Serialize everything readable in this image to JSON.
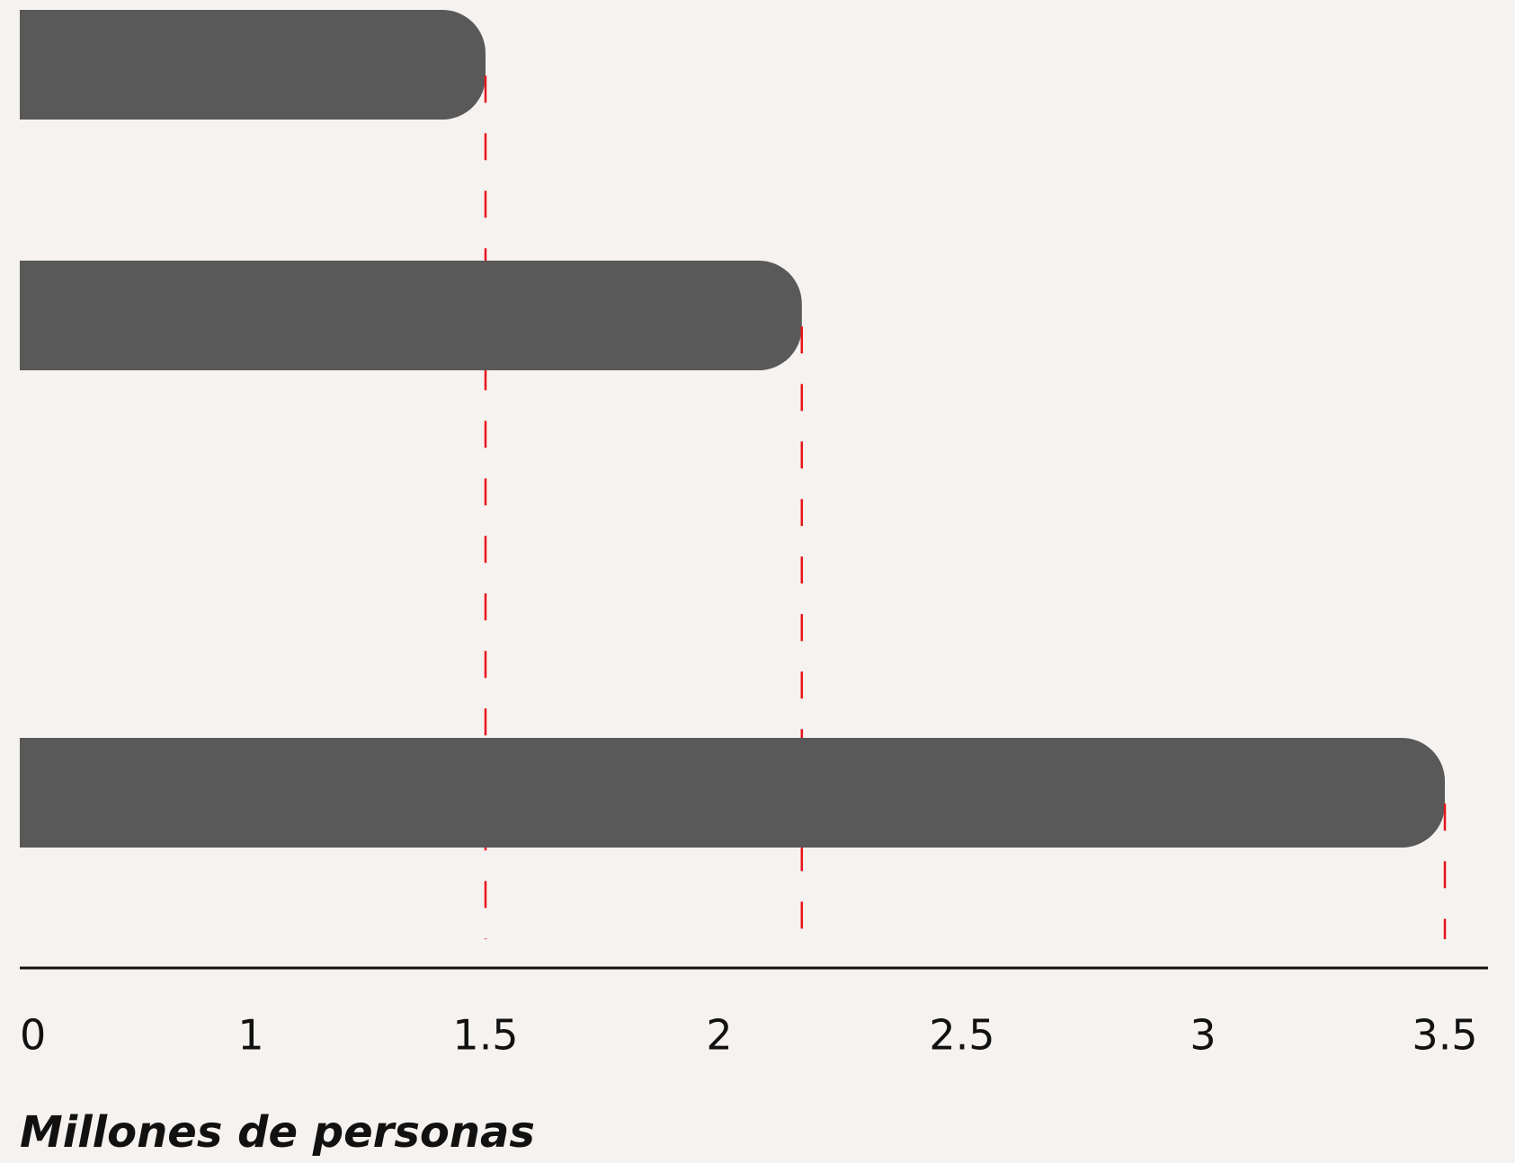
{
  "chart_data": {
    "type": "bar",
    "orientation": "horizontal",
    "categories": [
      null,
      null,
      null
    ],
    "values": [
      1.5,
      2.17,
      3.5
    ],
    "color": "#595959",
    "marker_color": "#e8141c",
    "xlabel": "Millones de personas",
    "xlim": [
      0,
      3.5
    ],
    "xticks": [
      0,
      1,
      1.5,
      2,
      2.5,
      3,
      3.5
    ]
  }
}
